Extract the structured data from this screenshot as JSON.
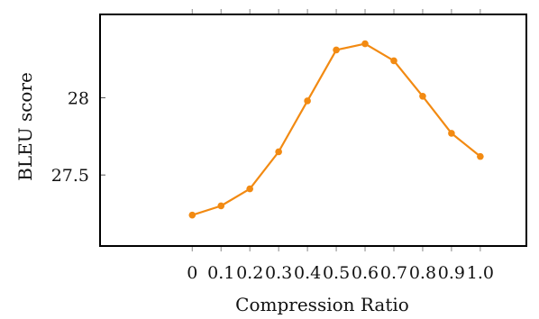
{
  "chart_data": {
    "type": "line",
    "title": "",
    "xlabel": "Compression Ratio",
    "ylabel": "BLEU score",
    "x": [
      0,
      0.1,
      0.2,
      0.3,
      0.4,
      0.5,
      0.6,
      0.7,
      0.8,
      0.9,
      1.0
    ],
    "x_tick_labels": [
      "0",
      "0.1",
      "0.2",
      "0.3",
      "0.4",
      "0.5",
      "0.6",
      "0.7",
      "0.8",
      "0.9",
      "1.0"
    ],
    "series": [
      {
        "values": [
          27.24,
          27.3,
          27.41,
          27.65,
          27.98,
          28.31,
          28.35,
          28.24,
          28.01,
          27.77,
          27.62
        ],
        "color": "#f28a12",
        "marker": "circle"
      }
    ],
    "y_ticks": [
      27.5,
      28
    ],
    "y_tick_labels": [
      "27.5",
      "28"
    ],
    "xlim": [
      -0.32,
      1.16
    ],
    "ylim": [
      27.04,
      28.54
    ],
    "grid": false,
    "legend": "none"
  }
}
